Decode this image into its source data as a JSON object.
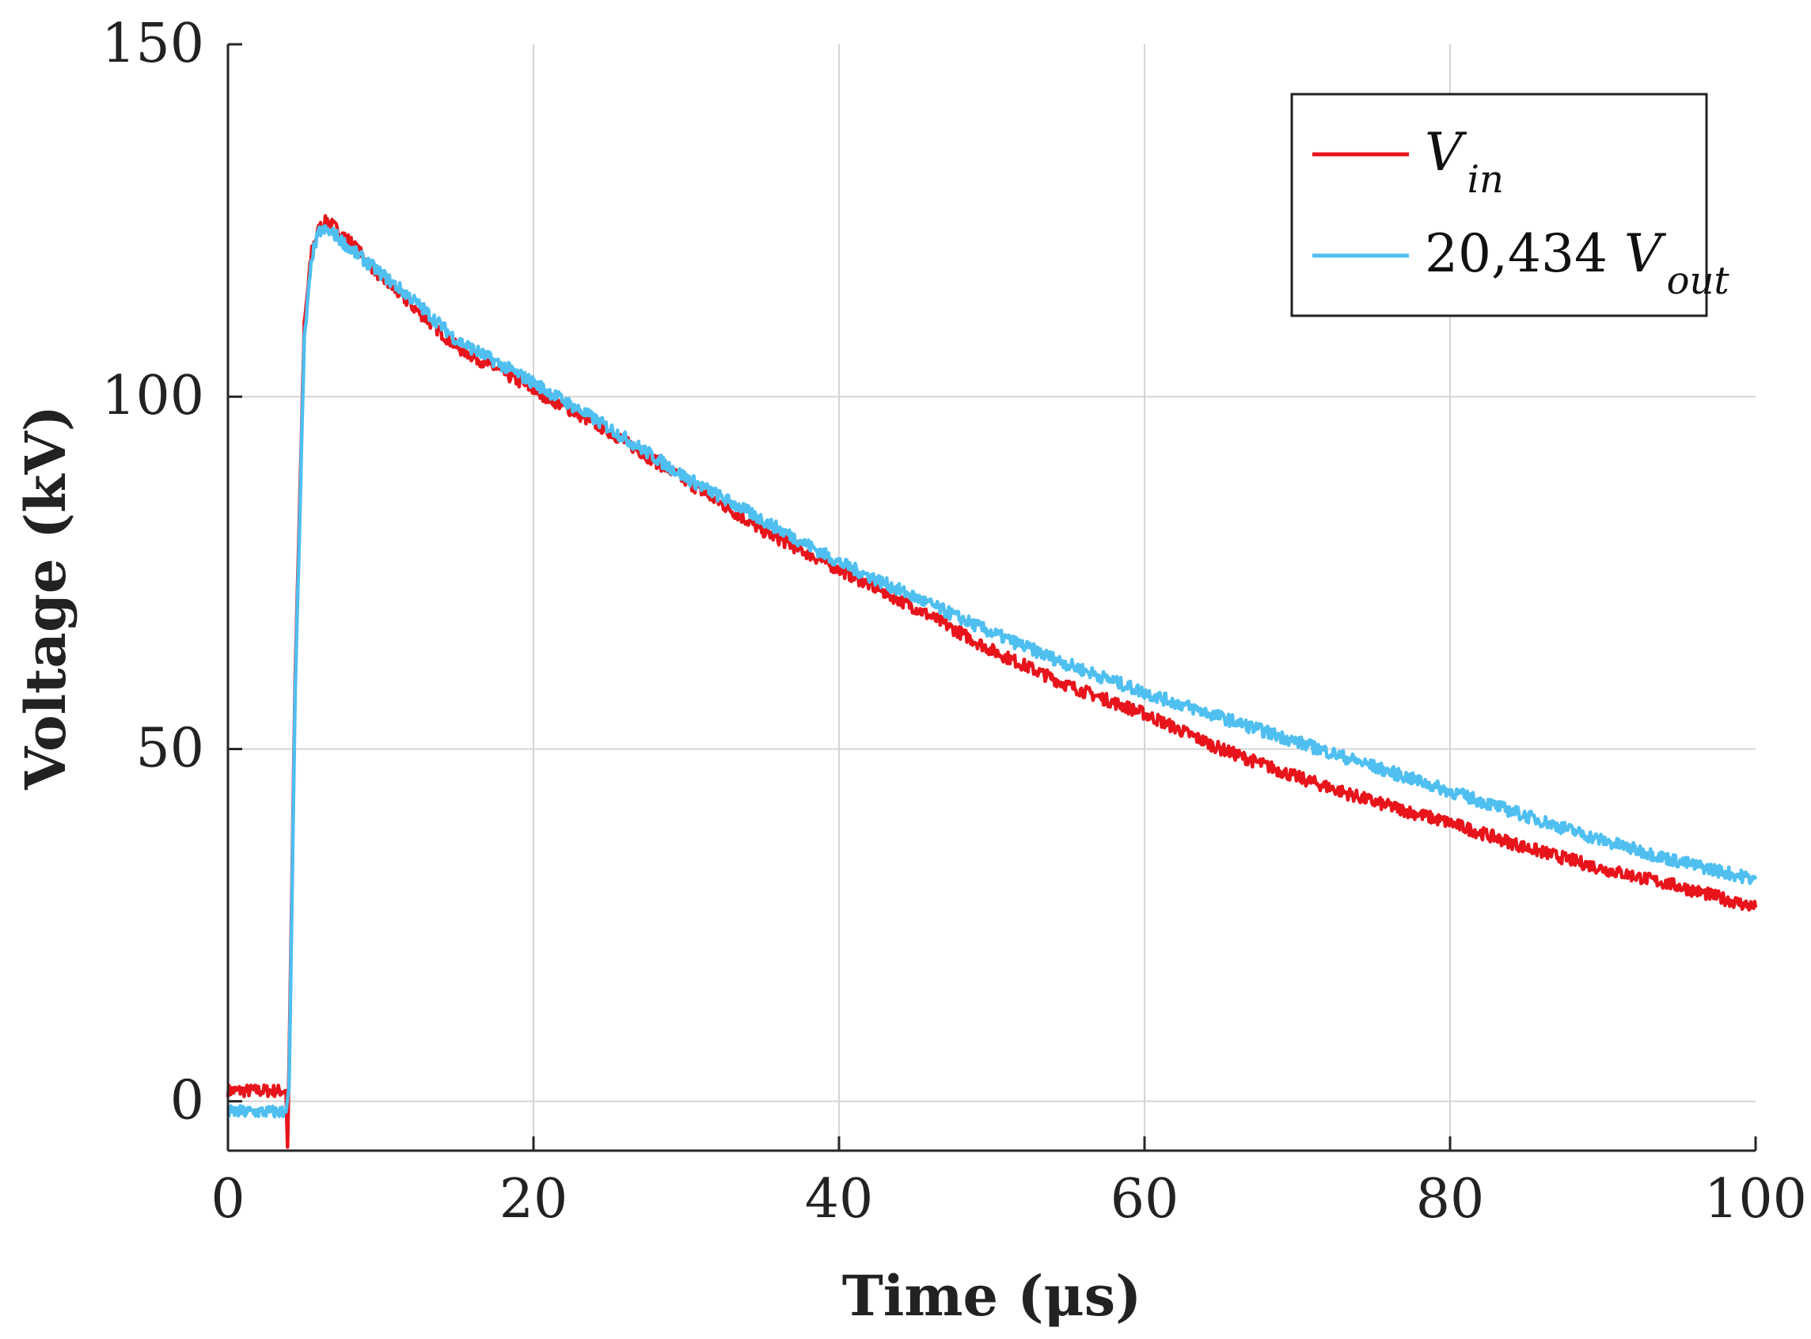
{
  "chart_data": {
    "type": "line",
    "title": "",
    "xlabel": "Time (μs)",
    "ylabel": "Voltage (kV)",
    "xlim": [
      0,
      100
    ],
    "ylim": [
      -7,
      150
    ],
    "xticks": [
      0,
      20,
      40,
      60,
      80,
      100
    ],
    "xtick_labels": [
      "0",
      "20",
      "40",
      "60",
      "80",
      "100"
    ],
    "yticks": [
      0,
      50,
      100,
      150
    ],
    "ytick_labels": [
      "0",
      "50",
      "100",
      "150"
    ],
    "grid": true,
    "legend_position": "top-right",
    "series": [
      {
        "name": "V_in",
        "legend_main": "V",
        "legend_sub": "in",
        "color": "#e8141b",
        "noise": 0.9,
        "x": [
          0,
          3.8,
          3.9,
          4.0,
          4.4,
          5.0,
          5.5,
          6.0,
          6.5,
          7,
          8,
          10,
          12,
          15,
          20,
          25,
          30,
          35,
          40,
          45,
          50,
          55,
          60,
          65,
          70,
          75,
          80,
          85,
          90,
          95,
          100
        ],
        "y": [
          1.5,
          1.5,
          -6.5,
          5,
          60,
          110,
          121,
          124,
          125,
          124,
          122,
          117,
          113,
          107,
          101,
          95,
          88,
          81,
          75.5,
          70,
          64,
          59,
          55,
          50,
          46,
          42.5,
          39.5,
          36,
          33,
          30.5,
          27.5
        ]
      },
      {
        "name": "20,434 V_out",
        "legend_prefix": "20,434 ",
        "legend_main": "V",
        "legend_sub": "out",
        "color": "#4fbff0",
        "noise": 0.9,
        "x": [
          0,
          3.8,
          4.0,
          4.4,
          5.0,
          5.5,
          6.0,
          6.5,
          7,
          8,
          10,
          12,
          15,
          20,
          25,
          30,
          35,
          40,
          45,
          50,
          55,
          60,
          65,
          70,
          75,
          80,
          85,
          90,
          95,
          100
        ],
        "y": [
          -1.5,
          -1.5,
          2,
          58,
          108,
          120,
          123.5,
          123.5,
          123,
          121,
          117.5,
          114,
          108,
          102,
          95.5,
          88.5,
          82.5,
          76.5,
          71.5,
          66.5,
          62,
          58,
          54.5,
          51,
          47.5,
          44,
          40.5,
          37,
          34,
          31.5
        ]
      }
    ]
  }
}
